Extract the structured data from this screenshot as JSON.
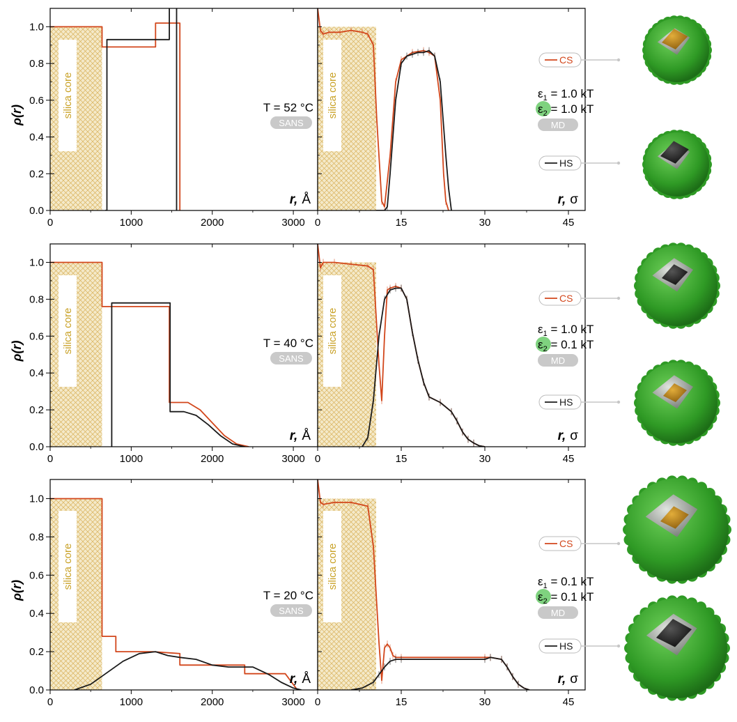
{
  "colors": {
    "cs": "#d2461b",
    "hs": "#1a1a1a",
    "silica_fill": "#f4e9c9",
    "silica_hatch": "#d9b25c",
    "silica_text": "#c9a227",
    "pill": "#c9c9c9",
    "eps_highlight": "#7fd27f",
    "shell_green": "#3aa52c",
    "core_gold": "#c48a1c",
    "grey": "#9a9a9a"
  },
  "labels": {
    "ylabel": "ρ(r)",
    "silica_core": "silica core",
    "sans": "SANS",
    "md": "MD",
    "r_prefix": "r,",
    "unit_angstrom": "Å",
    "unit_sigma": "σ",
    "legend_cs": "CS",
    "legend_hs": "HS"
  },
  "rows": [
    {
      "temperature": "T = 52 °C",
      "eps1": "ε1 = 1.0 kT",
      "eps1_sym": "ε",
      "eps1_sub": "1",
      "eps1_val": " = 1.0 kT",
      "eps2_sym": "ε",
      "eps2_sub": "2",
      "eps2_val": " = 1.0 kT"
    },
    {
      "temperature": "T = 40 °C",
      "eps1_sym": "ε",
      "eps1_sub": "1",
      "eps1_val": " = 1.0 kT",
      "eps2_sym": "ε",
      "eps2_sub": "2",
      "eps2_val": " = 0.1 kT"
    },
    {
      "temperature": "T = 20 °C",
      "eps1_sym": "ε",
      "eps1_sub": "1",
      "eps1_val": " = 0.1 kT",
      "eps2_sym": "ε",
      "eps2_sub": "2",
      "eps2_val": " = 0.1 kT"
    }
  ],
  "chart_data": [
    {
      "type": "line",
      "panel": "row1-left",
      "xlabel": "r, Å",
      "ylabel": "ρ(r)",
      "xlim": [
        0,
        3300
      ],
      "ylim": [
        0,
        1.1
      ],
      "xticks": [
        "0",
        "1000",
        "2000",
        "3000"
      ],
      "yticks": [
        "0.0",
        "0.2",
        "0.4",
        "0.6",
        "0.8",
        "1.0"
      ],
      "silica_core": [
        0,
        640
      ],
      "series": [
        {
          "name": "CS",
          "x": [
            0,
            640,
            640,
            1300,
            1300,
            1600,
            1600,
            1600
          ],
          "y": [
            1.0,
            1.0,
            0.89,
            0.89,
            1.02,
            1.02,
            0,
            0
          ]
        },
        {
          "name": "HS",
          "x": [
            680,
            700,
            700,
            1470,
            1470,
            1560,
            1560
          ],
          "y": [
            0,
            0,
            0.93,
            0.93,
            1.12,
            1.12,
            0
          ]
        }
      ]
    },
    {
      "type": "line",
      "panel": "row1-right",
      "xlabel": "r, σ",
      "ylabel": "ρ(r)",
      "xlim": [
        0,
        48
      ],
      "ylim": [
        0,
        1.1
      ],
      "xticks": [
        "0",
        "15",
        "30",
        "45"
      ],
      "silica_core": [
        0,
        10.5
      ],
      "series": [
        {
          "name": "CS",
          "x": [
            0,
            0.5,
            1,
            2,
            4,
            6,
            8,
            9,
            10,
            10.6,
            11.2,
            11.5,
            12,
            13,
            14,
            15,
            17,
            19,
            20,
            21,
            22,
            22.6,
            23,
            23.5
          ],
          "y": [
            1.1,
            0.98,
            0.96,
            0.97,
            0.97,
            0.98,
            0.97,
            0.96,
            0.9,
            0.5,
            0.2,
            0.05,
            0.02,
            0.3,
            0.7,
            0.82,
            0.86,
            0.87,
            0.86,
            0.84,
            0.6,
            0.2,
            0.05,
            0
          ]
        },
        {
          "name": "HS",
          "x": [
            10.5,
            12,
            12.5,
            13,
            14,
            15,
            16,
            17,
            18,
            19,
            20,
            21,
            22,
            22.5,
            23,
            23.5,
            24
          ],
          "y": [
            0,
            0,
            0.02,
            0.2,
            0.6,
            0.8,
            0.84,
            0.85,
            0.86,
            0.86,
            0.87,
            0.84,
            0.7,
            0.5,
            0.3,
            0.12,
            0
          ]
        }
      ]
    },
    {
      "type": "line",
      "panel": "row2-left",
      "xlabel": "r, Å",
      "ylabel": "ρ(r)",
      "xlim": [
        0,
        3300
      ],
      "ylim": [
        0,
        1.1
      ],
      "xticks": [
        "0",
        "1000",
        "2000",
        "3000"
      ],
      "yticks": [
        "0.0",
        "0.2",
        "0.4",
        "0.6",
        "0.8",
        "1.0"
      ],
      "silica_core": [
        0,
        640
      ],
      "series": [
        {
          "name": "CS",
          "x": [
            0,
            640,
            640,
            1470,
            1470,
            1700,
            1850,
            2000,
            2150,
            2300,
            2450
          ],
          "y": [
            1.0,
            1.0,
            0.76,
            0.76,
            0.24,
            0.24,
            0.2,
            0.13,
            0.06,
            0.015,
            0
          ]
        },
        {
          "name": "HS",
          "x": [
            760,
            760,
            1480,
            1480,
            1650,
            1800,
            1950,
            2100,
            2250,
            2400
          ],
          "y": [
            0,
            0.78,
            0.78,
            0.19,
            0.19,
            0.17,
            0.12,
            0.06,
            0.015,
            0
          ]
        }
      ]
    },
    {
      "type": "line",
      "panel": "row2-right",
      "xlabel": "r, σ",
      "ylabel": "ρ(r)",
      "xlim": [
        0,
        48
      ],
      "ylim": [
        0,
        1.1
      ],
      "xticks": [
        "0",
        "15",
        "30",
        "45"
      ],
      "silica_core": [
        0,
        10.5
      ],
      "series": [
        {
          "name": "CS",
          "x": [
            0,
            0.5,
            1,
            3,
            6,
            9,
            10,
            11,
            11.5,
            12,
            12.5,
            13,
            14,
            15,
            16,
            17,
            18,
            19,
            20,
            22,
            24,
            25,
            26,
            27,
            28,
            29,
            30
          ],
          "y": [
            1.1,
            0.97,
            1.0,
            1.0,
            0.99,
            0.98,
            0.96,
            0.45,
            0.25,
            0.6,
            0.85,
            0.86,
            0.87,
            0.86,
            0.8,
            0.62,
            0.47,
            0.35,
            0.27,
            0.24,
            0.19,
            0.14,
            0.08,
            0.04,
            0.02,
            0.005,
            0
          ]
        },
        {
          "name": "HS",
          "x": [
            8,
            9,
            10,
            11,
            12,
            13,
            14,
            15,
            16,
            17,
            18,
            19,
            20,
            22,
            24,
            25,
            26,
            27,
            28,
            29,
            30
          ],
          "y": [
            0,
            0.05,
            0.25,
            0.6,
            0.8,
            0.85,
            0.86,
            0.86,
            0.8,
            0.62,
            0.47,
            0.35,
            0.27,
            0.24,
            0.19,
            0.14,
            0.08,
            0.04,
            0.02,
            0.005,
            0
          ]
        }
      ]
    },
    {
      "type": "line",
      "panel": "row3-left",
      "xlabel": "r, Å",
      "ylabel": "ρ(r)",
      "xlim": [
        0,
        3300
      ],
      "ylim": [
        0,
        1.1
      ],
      "xticks": [
        "0",
        "1000",
        "2000",
        "3000"
      ],
      "yticks": [
        "0.0",
        "0.2",
        "0.4",
        "0.6",
        "0.8",
        "1.0"
      ],
      "silica_core": [
        0,
        640
      ],
      "series": [
        {
          "name": "CS",
          "x": [
            0,
            640,
            640,
            810,
            810,
            1270,
            1600,
            1600,
            2400,
            2400,
            2900,
            3050
          ],
          "y": [
            1.0,
            1.0,
            0.28,
            0.28,
            0.2,
            0.2,
            0.19,
            0.13,
            0.13,
            0.085,
            0.085,
            0
          ]
        },
        {
          "name": "HS",
          "x": [
            300,
            500,
            700,
            900,
            1100,
            1300,
            1450,
            1600,
            1800,
            2000,
            2200,
            2500,
            2700,
            2850,
            3000,
            3100
          ],
          "y": [
            0,
            0.03,
            0.09,
            0.15,
            0.19,
            0.2,
            0.18,
            0.17,
            0.16,
            0.13,
            0.12,
            0.12,
            0.08,
            0.04,
            0.01,
            0
          ]
        }
      ]
    },
    {
      "type": "line",
      "panel": "row3-right",
      "xlabel": "r, σ",
      "ylabel": "ρ(r)",
      "xlim": [
        0,
        48
      ],
      "ylim": [
        0,
        1.1
      ],
      "xticks": [
        "0",
        "15",
        "30",
        "45"
      ],
      "silica_core": [
        0,
        10.5
      ],
      "series": [
        {
          "name": "CS",
          "x": [
            0,
            0.5,
            1,
            3,
            6,
            9,
            10,
            11,
            11.5,
            12,
            12.5,
            13,
            13.5,
            14,
            15,
            30,
            31,
            33,
            34,
            35,
            36,
            37,
            38
          ],
          "y": [
            1.1,
            0.98,
            0.97,
            0.98,
            0.98,
            0.96,
            0.75,
            0.25,
            0.05,
            0.22,
            0.24,
            0.22,
            0.18,
            0.17,
            0.17,
            0.17,
            0.17,
            0.16,
            0.12,
            0.07,
            0.03,
            0.01,
            0
          ]
        },
        {
          "name": "HS",
          "x": [
            6,
            8,
            10,
            11,
            12,
            13,
            14,
            15,
            30,
            31,
            33,
            34,
            35,
            36,
            37,
            38
          ],
          "y": [
            0,
            0.01,
            0.04,
            0.08,
            0.12,
            0.15,
            0.16,
            0.16,
            0.16,
            0.17,
            0.16,
            0.12,
            0.07,
            0.03,
            0.01,
            0
          ]
        }
      ]
    }
  ]
}
